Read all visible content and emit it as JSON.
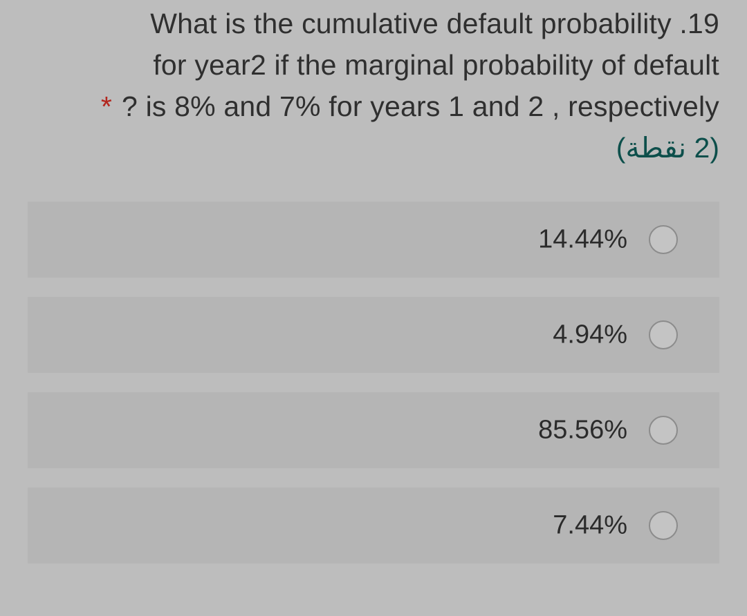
{
  "question": {
    "line1": "What is the cumulative default probability .19",
    "line2": "for year2 if the marginal probability of default",
    "required_marker": "*",
    "line3": "? is 8% and 7% for years 1 and 2 , respectively",
    "points": "(2 نقطة)"
  },
  "options": [
    {
      "label": "14.44%",
      "selected": false
    },
    {
      "label": "4.94%",
      "selected": false
    },
    {
      "label": "85.56%",
      "selected": false
    },
    {
      "label": "7.44%",
      "selected": false
    }
  ],
  "colors": {
    "background": "#bdbdbd",
    "option_background": "#b5b5b5",
    "required_star": "#b3261e",
    "points_text": "#0d4f4b"
  }
}
